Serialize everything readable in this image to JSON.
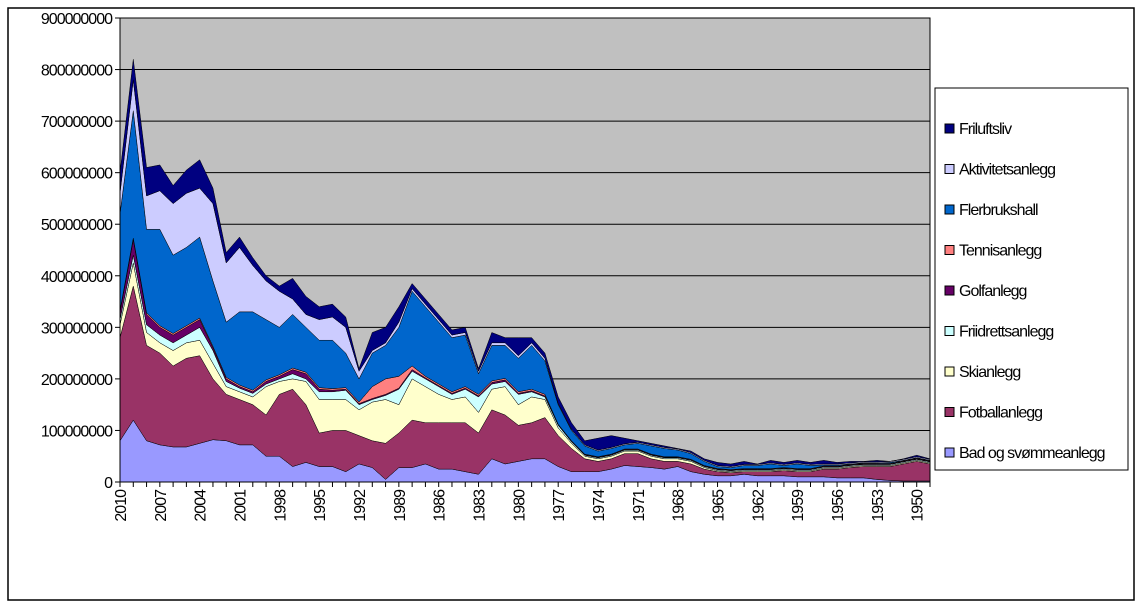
{
  "chart_data": {
    "type": "area",
    "stacked": true,
    "legend": "right",
    "grid": true,
    "categories": [
      "2010",
      null,
      null,
      "2007",
      null,
      null,
      "2004",
      null,
      null,
      "2001",
      null,
      null,
      "1998",
      null,
      null,
      "1995",
      null,
      null,
      "1992",
      null,
      null,
      "1989",
      null,
      null,
      "1986",
      null,
      null,
      "1983",
      null,
      null,
      "1980",
      null,
      null,
      "1977",
      null,
      null,
      "1974",
      null,
      null,
      "1971",
      null,
      null,
      "1968",
      null,
      null,
      "1965",
      null,
      null,
      "1962",
      null,
      null,
      "1959",
      null,
      null,
      "1956",
      null,
      null,
      "1953",
      null,
      null,
      "1950",
      null
    ],
    "ylim": [
      0,
      900000000
    ],
    "yticks": [
      0,
      100000000,
      200000000,
      300000000,
      400000000,
      500000000,
      600000000,
      700000000,
      800000000,
      900000000
    ],
    "series": [
      {
        "name": "Bad og svømmeanlegg",
        "color": "#9999ff",
        "values": [
          80000000.0,
          120000000.0,
          80000000.0,
          72000000.0,
          68000000.0,
          68000000.0,
          75000000.0,
          82000000.0,
          80000000.0,
          72000000.0,
          72000000.0,
          50000000.0,
          50000000.0,
          30000000.0,
          38000000.0,
          30000000.0,
          30000000.0,
          20000000.0,
          35000000.0,
          28000000.0,
          5000000.0,
          28000000.0,
          28000000.0,
          35000000.0,
          25000000.0,
          25000000.0,
          20000000.0,
          15000000.0,
          45000000.0,
          35000000.0,
          40000000.0,
          45000000.0,
          45000000.0,
          30000000.0,
          20000000.0,
          20000000.0,
          20000000.0,
          25000000.0,
          32000000.0,
          30000000.0,
          28000000.0,
          25000000.0,
          30000000.0,
          20000000.0,
          15000000.0,
          12000000.0,
          12000000.0,
          15000000.0,
          12000000.0,
          12000000.0,
          12000000.0,
          10000000.0,
          10000000.0,
          10000000.0,
          8000000.0,
          8000000.0,
          8000000.0,
          5000000.0,
          3000000.0,
          2000000.0,
          2000000.0,
          2000000.0
        ]
      },
      {
        "name": "Fotballanlegg",
        "color": "#993366",
        "values": [
          200000000.0,
          260000000.0,
          185000000.0,
          178000000.0,
          157000000.0,
          172000000.0,
          170000000.0,
          118000000.0,
          90000000.0,
          88000000.0,
          78000000.0,
          80000000.0,
          120000000.0,
          150000000.0,
          112000000.0,
          65000000.0,
          70000000.0,
          80000000.0,
          55000000.0,
          52000000.0,
          70000000.0,
          67000000.0,
          92000000.0,
          80000000.0,
          90000000.0,
          90000000.0,
          95000000.0,
          80000000.0,
          95000000.0,
          95000000.0,
          70000000.0,
          70000000.0,
          80000000.0,
          60000000.0,
          45000000.0,
          25000000.0,
          20000000.0,
          20000000.0,
          23000000.0,
          25000000.0,
          17000000.0,
          15000000.0,
          10000000.0,
          15000000.0,
          10000000.0,
          8000000.0,
          6000000.0,
          5000000.0,
          8000000.0,
          8000000.0,
          10000000.0,
          10000000.0,
          10000000.0,
          15000000.0,
          17000000.0,
          20000000.0,
          22000000.0,
          25000000.0,
          27000000.0,
          33000000.0,
          38000000.0,
          33000000.0
        ]
      },
      {
        "name": "Skianlegg",
        "color": "#ffffcc",
        "values": [
          25000000.0,
          45000000.0,
          25000000.0,
          20000000.0,
          30000000.0,
          30000000.0,
          30000000.0,
          30000000.0,
          15000000.0,
          15000000.0,
          15000000.0,
          55000000.0,
          25000000.0,
          20000000.0,
          45000000.0,
          65000000.0,
          60000000.0,
          60000000.0,
          50000000.0,
          75000000.0,
          85000000.0,
          55000000.0,
          80000000.0,
          70000000.0,
          55000000.0,
          45000000.0,
          50000000.0,
          40000000.0,
          40000000.0,
          55000000.0,
          40000000.0,
          50000000.0,
          35000000.0,
          15000000.0,
          10000000.0,
          5000000.0,
          5000000.0,
          5000000.0,
          5000000.0,
          5000000.0,
          5000000.0,
          5000000.0,
          5000000.0,
          5000000.0,
          3000000.0,
          2000000.0,
          2000000.0,
          2000000.0,
          2000000.0,
          2000000.0,
          2000000.0,
          2000000.0,
          2000000.0,
          2000000.0,
          2000000.0,
          2000000.0,
          2000000.0,
          2000000.0,
          2000000.0,
          2000000.0,
          2000000.0,
          2000000.0
        ]
      },
      {
        "name": "Friidrettsanlegg",
        "color": "#ccffff",
        "values": [
          10000000.0,
          15000000.0,
          15000000.0,
          15000000.0,
          15000000.0,
          15000000.0,
          25000000.0,
          25000000.0,
          10000000.0,
          7000000.0,
          7000000.0,
          5000000.0,
          5000000.0,
          10000000.0,
          5000000.0,
          15000000.0,
          15000000.0,
          18000000.0,
          10000000.0,
          5000000.0,
          8000000.0,
          30000000.0,
          15000000.0,
          15000000.0,
          15000000.0,
          10000000.0,
          15000000.0,
          30000000.0,
          10000000.0,
          10000000.0,
          20000000.0,
          10000000.0,
          5000000.0,
          5000000.0,
          3000000.0,
          2000000.0,
          2000000.0,
          2000000.0,
          2000000.0,
          2000000.0,
          2000000.0,
          2000000.0,
          2000000.0,
          2000000.0,
          2000000.0,
          2000000.0,
          2000000.0,
          2000000.0,
          2000000.0,
          2000000.0,
          2000000.0,
          2000000.0,
          2000000.0,
          2000000.0,
          2000000.0,
          2000000.0,
          2000000.0,
          2000000.0,
          2000000.0,
          2000000.0,
          2000000.0,
          2000000.0
        ]
      },
      {
        "name": "Golfanlegg",
        "color": "#660066",
        "values": [
          15000000.0,
          30000000.0,
          20000000.0,
          15000000.0,
          15000000.0,
          15000000.0,
          15000000.0,
          5000000.0,
          5000000.0,
          3000000.0,
          3000000.0,
          5000000.0,
          5000000.0,
          8000000.0,
          10000000.0,
          5000000.0,
          3000000.0,
          2000000.0,
          2000000.0,
          2000000.0,
          2000000.0,
          2000000.0,
          3000000.0,
          2000000.0,
          2000000.0,
          2000000.0,
          2000000.0,
          2000000.0,
          3000000.0,
          3000000.0,
          2000000.0,
          2000000.0,
          2000000.0,
          1000000.0,
          1000000.0,
          1000000.0,
          1000000.0,
          1000000.0,
          1000000.0,
          1000000.0,
          1000000.0,
          1000000.0,
          1000000.0,
          1000000.0,
          1000000.0,
          1000000.0,
          1000000.0,
          1000000.0,
          1000000.0,
          1000000.0,
          1000000.0,
          1000000.0,
          1000000.0,
          1000000.0,
          1000000.0,
          1000000.0,
          1000000.0,
          1000000.0,
          1000000.0,
          1000000.0,
          1000000.0,
          1000000.0
        ]
      },
      {
        "name": "Tennisanlegg",
        "color": "#ff8080",
        "values": [
          3000000.0,
          3000000.0,
          3000000.0,
          3000000.0,
          3000000.0,
          3000000.0,
          3000000.0,
          3000000.0,
          3000000.0,
          3000000.0,
          3000000.0,
          3000000.0,
          3000000.0,
          3000000.0,
          3000000.0,
          3000000.0,
          3000000.0,
          3000000.0,
          3000000.0,
          23000000.0,
          30000000.0,
          23000000.0,
          7000000.0,
          3000000.0,
          3000000.0,
          3000000.0,
          3000000.0,
          3000000.0,
          3000000.0,
          3000000.0,
          3000000.0,
          3000000.0,
          3000000.0,
          1000000.0,
          1000000.0,
          1000000.0,
          1000000.0,
          1000000.0,
          1000000.0,
          1000000.0,
          1000000.0,
          1000000.0,
          1000000.0,
          1000000.0,
          1000000.0,
          1000000.0,
          1000000.0,
          1000000.0,
          1000000.0,
          1000000.0,
          1000000.0,
          1000000.0,
          1000000.0,
          1000000.0,
          1000000.0,
          1000000.0,
          1000000.0,
          1000000.0,
          1000000.0,
          1000000.0,
          1000000.0,
          1000000.0
        ]
      },
      {
        "name": "Flerbrukshall",
        "color": "#0066cc",
        "values": [
          187000000.0,
          247000000.0,
          162000000.0,
          187000000.0,
          152000000.0,
          152000000.0,
          157000000.0,
          127000000.0,
          107000000.0,
          142000000.0,
          152000000.0,
          117000000.0,
          92000000.0,
          104000000.0,
          87000000.0,
          92000000.0,
          94000000.0,
          67000000.0,
          45000000.0,
          65000000.0,
          65000000.0,
          95000000.0,
          145000000.0,
          135000000.0,
          120000000.0,
          105000000.0,
          100000000.0,
          40000000.0,
          69000000.0,
          64000000.0,
          65000000.0,
          85000000.0,
          65000000.0,
          38000000.0,
          20000000.0,
          16000000.0,
          11000000.0,
          11000000.0,
          8000000.0,
          11000000.0,
          16000000.0,
          16000000.0,
          13000000.0,
          11000000.0,
          8000000.0,
          4000000.0,
          4000000.0,
          6000000.0,
          6000000.0,
          9000000.0,
          4000000.0,
          9000000.0,
          6000000.0,
          2000000.0,
          2000000.0,
          1000000.0,
          1000000.0,
          1000000.0,
          2000000.0,
          1000000.0,
          1000000.0,
          1000000.0
        ]
      },
      {
        "name": "Aktivitetsanlegg",
        "color": "#ccccff",
        "values": [
          40000000.0,
          60000000.0,
          65000000.0,
          75000000.0,
          100000000.0,
          105000000.0,
          95000000.0,
          150000000.0,
          115000000.0,
          125000000.0,
          90000000.0,
          75000000.0,
          70000000.0,
          30000000.0,
          25000000.0,
          40000000.0,
          45000000.0,
          50000000.0,
          15000000.0,
          5000000.0,
          5000000.0,
          10000000.0,
          5000000.0,
          5000000.0,
          5000000.0,
          5000000.0,
          5000000.0,
          5000000.0,
          5000000.0,
          5000000.0,
          5000000.0,
          5000000.0,
          5000000.0,
          2000000.0,
          2000000.0,
          2000000.0,
          2000000.0,
          2000000.0,
          2000000.0,
          2000000.0,
          2000000.0,
          2000000.0,
          2000000.0,
          2000000.0,
          2000000.0,
          2000000.0,
          2000000.0,
          2000000.0,
          2000000.0,
          2000000.0,
          2000000.0,
          2000000.0,
          2000000.0,
          2000000.0,
          2000000.0,
          2000000.0,
          2000000.0,
          2000000.0,
          2000000.0,
          2000000.0,
          2000000.0,
          2000000.0
        ]
      },
      {
        "name": "Friluftsliv",
        "color": "#000080",
        "values": [
          40000000.0,
          40000000.0,
          55000000.0,
          50000000.0,
          35000000.0,
          45000000.0,
          55000000.0,
          30000000.0,
          20000000.0,
          20000000.0,
          15000000.0,
          10000000.0,
          10000000.0,
          40000000.0,
          35000000.0,
          25000000.0,
          25000000.0,
          20000000.0,
          5000000.0,
          35000000.0,
          30000000.0,
          30000000.0,
          10000000.0,
          10000000.0,
          10000000.0,
          10000000.0,
          10000000.0,
          5000000.0,
          20000000.0,
          10000000.0,
          35000000.0,
          10000000.0,
          10000000.0,
          13000000.0,
          13000000.0,
          8000000.0,
          23000000.0,
          23000000.0,
          11000000.0,
          3000000.0,
          3000000.0,
          3000000.0,
          1000000.0,
          3000000.0,
          3000000.0,
          6000000.0,
          5000000.0,
          6000000.0,
          1000000.0,
          5000000.0,
          4000000.0,
          5000000.0,
          4000000.0,
          7000000.0,
          3000000.0,
          3000000.0,
          1000000.0,
          3000000.0,
          0,
          1000000.0,
          3000000.0,
          1000000.0
        ]
      }
    ]
  }
}
